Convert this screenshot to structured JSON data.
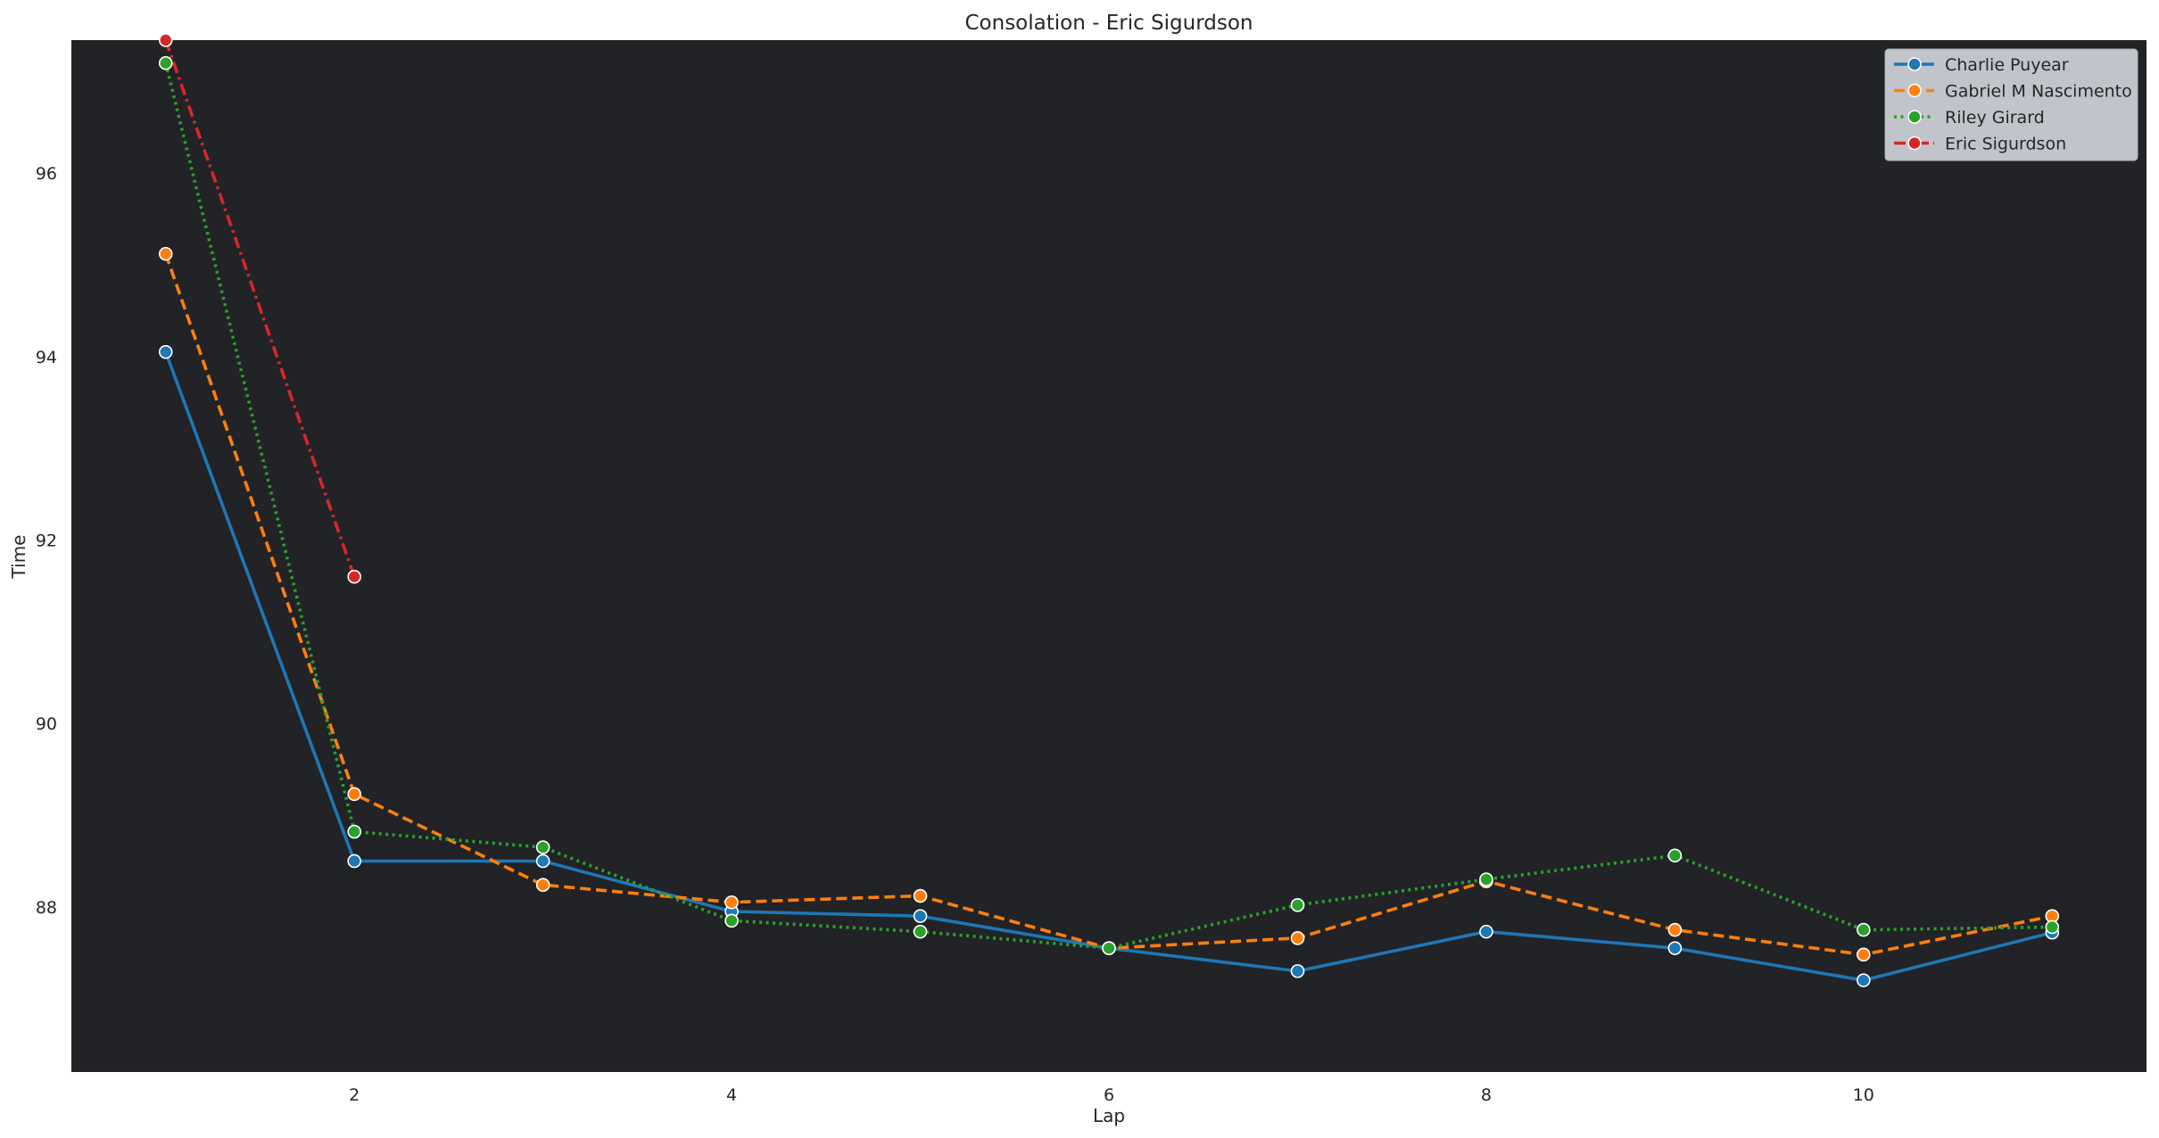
{
  "chart_data": {
    "type": "line",
    "title": "Consolation - Eric Sigurdson",
    "xlabel": "Lap",
    "ylabel": "Time",
    "xlim": [
      0.5,
      11.5
    ],
    "ylim": [
      86.2,
      97.45
    ],
    "xticks": [
      2,
      4,
      6,
      8,
      10
    ],
    "yticks": [
      88,
      90,
      92,
      94,
      96
    ],
    "grid": false,
    "legend_position": "top-right",
    "plot_background": "#212327",
    "series": [
      {
        "name": "Charlie Puyear",
        "color": "#1f77b4",
        "style": "solid",
        "x": [
          1,
          2,
          3,
          4,
          5,
          6,
          7,
          8,
          9,
          10,
          11
        ],
        "values": [
          94.05,
          88.5,
          88.5,
          87.95,
          87.9,
          87.55,
          87.3,
          87.73,
          87.55,
          87.2,
          87.72
        ]
      },
      {
        "name": "Gabriel M Nascimento",
        "color": "#ff7f0e",
        "style": "dashed",
        "x": [
          1,
          2,
          3,
          4,
          5,
          6,
          7,
          8,
          9,
          10,
          11
        ],
        "values": [
          95.12,
          89.23,
          88.24,
          88.05,
          88.12,
          87.55,
          87.66,
          88.28,
          87.75,
          87.48,
          87.9
        ]
      },
      {
        "name": "Riley Girard",
        "color": "#2ca02c",
        "style": "dotted",
        "x": [
          1,
          2,
          3,
          4,
          5,
          6,
          7,
          8,
          9,
          10,
          11
        ],
        "values": [
          97.2,
          88.82,
          88.65,
          87.85,
          87.73,
          87.55,
          88.02,
          88.3,
          88.56,
          87.75,
          87.78
        ]
      },
      {
        "name": "Eric Sigurdson",
        "color": "#d62728",
        "style": "dashdot",
        "x": [
          1,
          2
        ],
        "values": [
          97.45,
          91.6
        ]
      }
    ]
  }
}
